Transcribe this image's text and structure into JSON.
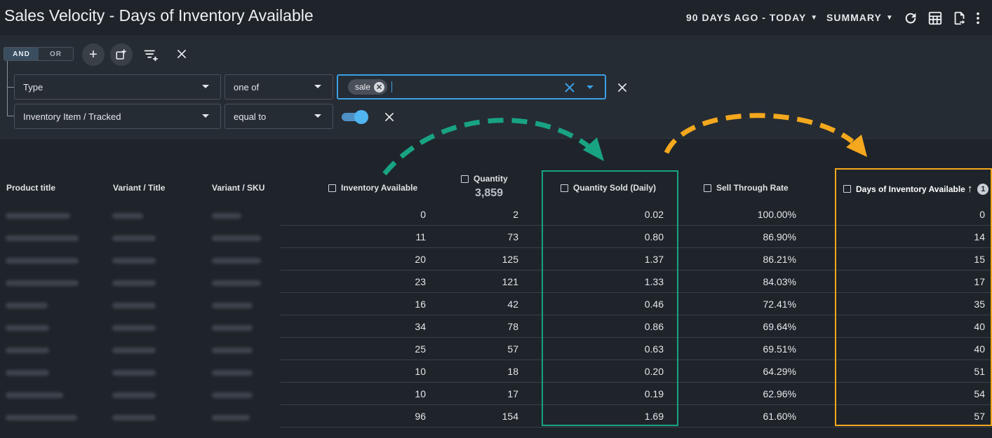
{
  "header": {
    "title": "Sales Velocity - Days of Inventory Available",
    "date_range": "90 DAYS AGO - TODAY",
    "view_mode": "SUMMARY"
  },
  "filters": {
    "logic": {
      "and_label": "AND",
      "or_label": "OR",
      "selected": "AND"
    },
    "rows": [
      {
        "field": "Type",
        "operator": "one of",
        "values": [
          "sale"
        ]
      },
      {
        "field": "Inventory Item / Tracked",
        "operator": "equal to",
        "toggle_on": true
      }
    ]
  },
  "table": {
    "columns": {
      "product_title": "Product title",
      "variant_title": "Variant / Title",
      "variant_sku": "Variant / SKU",
      "inventory_available": "Inventory Available",
      "quantity": "Quantity",
      "quantity_sold_daily": "Quantity Sold (Daily)",
      "sell_through_rate": "Sell Through Rate",
      "days_of_inventory": "Days of Inventory Available"
    },
    "quantity_total": "3,859",
    "sort_badge": "1",
    "rows": [
      {
        "inv": "0",
        "qty": "2",
        "sold": "0.02",
        "str": "100.00%",
        "days": "0"
      },
      {
        "inv": "11",
        "qty": "73",
        "sold": "0.80",
        "str": "86.90%",
        "days": "14"
      },
      {
        "inv": "20",
        "qty": "125",
        "sold": "1.37",
        "str": "86.21%",
        "days": "15"
      },
      {
        "inv": "23",
        "qty": "121",
        "sold": "1.33",
        "str": "84.03%",
        "days": "17"
      },
      {
        "inv": "16",
        "qty": "42",
        "sold": "0.46",
        "str": "72.41%",
        "days": "35"
      },
      {
        "inv": "34",
        "qty": "78",
        "sold": "0.86",
        "str": "69.64%",
        "days": "40"
      },
      {
        "inv": "25",
        "qty": "57",
        "sold": "0.63",
        "str": "69.51%",
        "days": "40"
      },
      {
        "inv": "10",
        "qty": "18",
        "sold": "0.20",
        "str": "64.29%",
        "days": "51"
      },
      {
        "inv": "10",
        "qty": "17",
        "sold": "0.19",
        "str": "62.96%",
        "days": "54"
      },
      {
        "inv": "96",
        "qty": "154",
        "sold": "1.69",
        "str": "61.60%",
        "days": "57"
      }
    ]
  },
  "colors": {
    "accent_green": "#18a383",
    "accent_orange": "#f4a81d",
    "accent_blue": "#3aa0e6"
  }
}
